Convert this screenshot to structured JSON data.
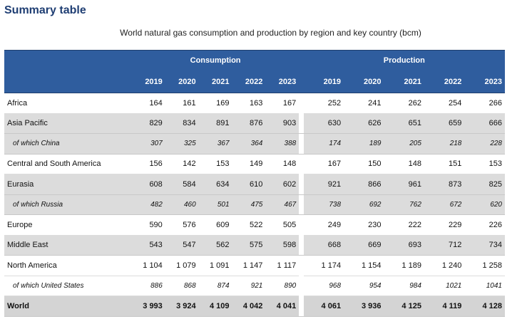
{
  "heading": "Summary table",
  "subtitle": "World natural gas consumption and production by region and key country (bcm)",
  "groups": {
    "consumption": "Consumption",
    "production": "Production"
  },
  "years": [
    "2019",
    "2020",
    "2021",
    "2022",
    "2023"
  ],
  "rows": [
    {
      "label": "Africa",
      "type": "main",
      "shade": false,
      "cons": [
        "164",
        "161",
        "169",
        "163",
        "167"
      ],
      "prod": [
        "252",
        "241",
        "262",
        "254",
        "266"
      ]
    },
    {
      "label": "Asia Pacific",
      "type": "main",
      "shade": true,
      "cons": [
        "829",
        "834",
        "891",
        "876",
        "903"
      ],
      "prod": [
        "630",
        "626",
        "651",
        "659",
        "666"
      ]
    },
    {
      "label": "of which China",
      "type": "sub",
      "shade": true,
      "cons": [
        "307",
        "325",
        "367",
        "364",
        "388"
      ],
      "prod": [
        "174",
        "189",
        "205",
        "218",
        "228"
      ]
    },
    {
      "label": "Central and South America",
      "type": "main",
      "shade": false,
      "cons": [
        "156",
        "142",
        "153",
        "149",
        "148"
      ],
      "prod": [
        "167",
        "150",
        "148",
        "151",
        "153"
      ]
    },
    {
      "label": "Eurasia",
      "type": "main",
      "shade": true,
      "cons": [
        "608",
        "584",
        "634",
        "610",
        "602"
      ],
      "prod": [
        "921",
        "866",
        "961",
        "873",
        "825"
      ]
    },
    {
      "label": "of which Russia",
      "type": "sub",
      "shade": true,
      "cons": [
        "482",
        "460",
        "501",
        "475",
        "467"
      ],
      "prod": [
        "738",
        "692",
        "762",
        "672",
        "620"
      ]
    },
    {
      "label": "Europe",
      "type": "main",
      "shade": false,
      "cons": [
        "590",
        "576",
        "609",
        "522",
        "505"
      ],
      "prod": [
        "249",
        "230",
        "222",
        "229",
        "226"
      ]
    },
    {
      "label": "Middle East",
      "type": "main",
      "shade": true,
      "cons": [
        "543",
        "547",
        "562",
        "575",
        "598"
      ],
      "prod": [
        "668",
        "669",
        "693",
        "712",
        "734"
      ]
    },
    {
      "label": "North America",
      "type": "main",
      "shade": false,
      "cons": [
        "1 104",
        "1 079",
        "1 091",
        "1 147",
        "1 117"
      ],
      "prod": [
        "1 174",
        "1 154",
        "1 189",
        "1 240",
        "1 258"
      ]
    },
    {
      "label": "of which United States",
      "type": "sub",
      "shade": false,
      "cons": [
        "886",
        "868",
        "874",
        "921",
        "890"
      ],
      "prod": [
        "968",
        "954",
        "984",
        "1021",
        "1041"
      ]
    },
    {
      "label": "World",
      "type": "world",
      "shade": true,
      "cons": [
        "3 993",
        "3 924",
        "4 109",
        "4 042",
        "4 041"
      ],
      "prod": [
        "4 061",
        "3 936",
        "4 125",
        "4 119",
        "4 128"
      ]
    }
  ]
}
